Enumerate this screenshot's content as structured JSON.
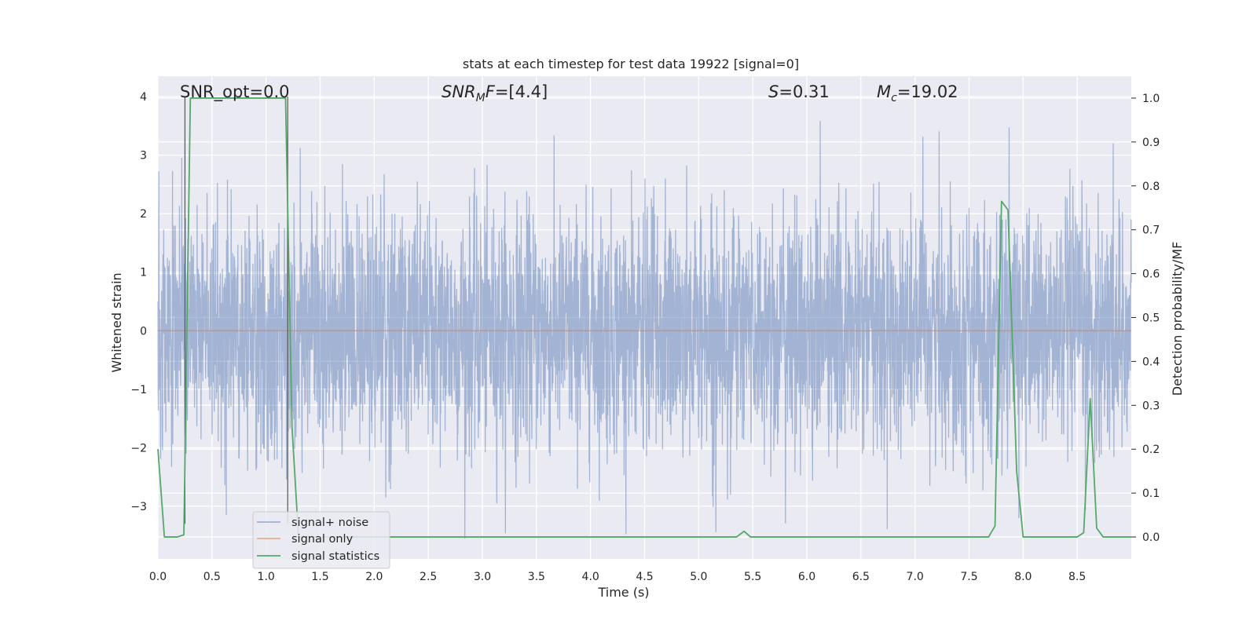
{
  "chart_data": {
    "type": "line",
    "title": "stats at each timestep for test data 19922 [signal=0]",
    "xlabel": "Time (s)",
    "ylabel_left": "Whitened strain",
    "ylabel_right": "Detection probability/MF",
    "xlim": [
      0.0,
      9.0
    ],
    "ylim_left": [
      -3.9,
      4.35
    ],
    "ylim_right": [
      -0.05,
      1.05
    ],
    "x_ticks": [
      "0.0",
      "0.5",
      "1.0",
      "1.5",
      "2.0",
      "2.5",
      "3.0",
      "3.5",
      "4.0",
      "4.5",
      "5.0",
      "5.5",
      "6.0",
      "6.5",
      "7.0",
      "7.5",
      "8.0",
      "8.5"
    ],
    "y_ticks_left": [
      "−3",
      "−2",
      "−1",
      "0",
      "1",
      "2",
      "3",
      "4"
    ],
    "y_ticks_right": [
      "0.0",
      "0.1",
      "0.2",
      "0.3",
      "0.4",
      "0.5",
      "0.6",
      "0.7",
      "0.8",
      "0.9",
      "1.0"
    ],
    "grid": true,
    "legend_position": "lower-left",
    "annotations": {
      "snr_opt": "SNR_opt=0.0",
      "snr_mf_base": "SNR",
      "snr_mf_sub": "M",
      "snr_mf_rest": "F=[4.4]",
      "s_var": "S",
      "s_val": "=0.31",
      "mc_var": "M",
      "mc_sub": "c",
      "mc_val": "=19.02"
    },
    "series": [
      {
        "name": "signal+ noise",
        "axis": "left",
        "color": "#4c72b0",
        "description_kind": "whitened noise, approx. Gaussian, std ~1, range about -3.6 to 4.0",
        "envelope": {
          "min": -3.6,
          "max": 4.0
        }
      },
      {
        "name": "signal only",
        "axis": "left",
        "color": "#dd8452",
        "x": [
          0.0,
          9.0
        ],
        "y": [
          0.0,
          0.0
        ]
      },
      {
        "name": "signal statistics",
        "axis": "right",
        "color": "#55a868",
        "x": [
          0.0,
          0.06,
          0.18,
          0.24,
          0.3,
          1.18,
          1.24,
          1.3,
          5.35,
          5.42,
          5.48,
          7.68,
          7.74,
          7.8,
          7.86,
          7.94,
          8.0,
          8.5,
          8.56,
          8.62,
          8.68,
          8.74,
          9.0
        ],
        "y": [
          0.2,
          0.0,
          0.0,
          0.005,
          1.0,
          1.0,
          0.25,
          0.0,
          0.0,
          0.013,
          0.0,
          0.0,
          0.025,
          0.765,
          0.745,
          0.15,
          0.0,
          0.0,
          0.01,
          0.315,
          0.02,
          0.0,
          0.0
        ]
      }
    ],
    "marker_lines": {
      "color": "#555555",
      "x": [
        0.25,
        1.2
      ]
    }
  },
  "colors": {
    "plot_background": "#eaeaf2",
    "grid": "#ffffff",
    "noise": "#4c72b0",
    "signal_only": "#dd8452",
    "stat": "#55a868"
  }
}
